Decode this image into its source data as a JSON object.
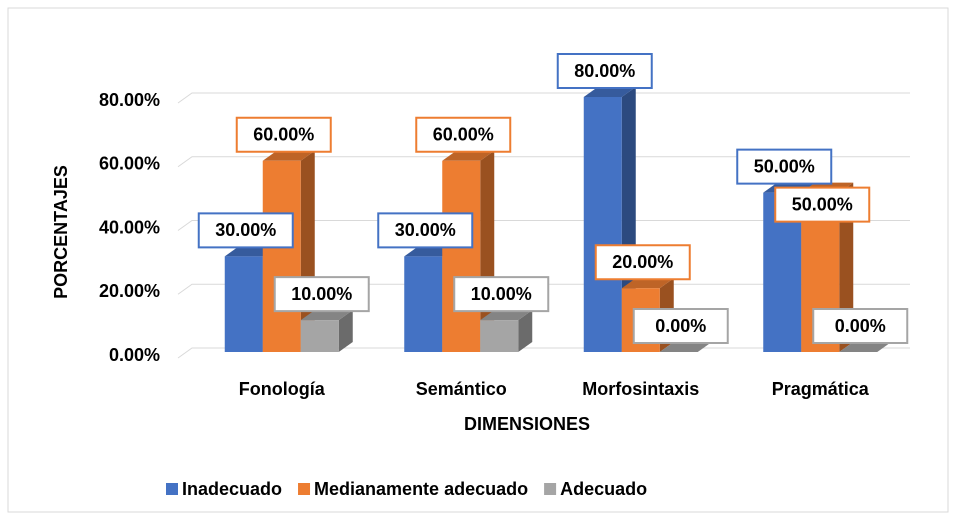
{
  "chart_data": {
    "type": "bar3d",
    "categories": [
      "Fonología",
      "Semántico",
      "Morfosintaxis",
      "Pragmática"
    ],
    "series": [
      {
        "name": "Inadecuado",
        "color": "#4472c4",
        "values": [
          30,
          30,
          80,
          50
        ],
        "value_labels": [
          "30.00%",
          "30.00%",
          "80.00%",
          "50.00%"
        ]
      },
      {
        "name": "Medianamente adecuado",
        "color": "#ed7d31",
        "values": [
          60,
          60,
          20,
          50
        ],
        "value_labels": [
          "60.00%",
          "60.00%",
          "20.00%",
          "50.00%"
        ]
      },
      {
        "name": "Adecuado",
        "color": "#a5a5a5",
        "values": [
          10,
          10,
          0,
          0
        ],
        "value_labels": [
          "10.00%",
          "10.00%",
          "0.00%",
          "0.00%"
        ]
      }
    ],
    "ylim": [
      0,
      80
    ],
    "yticks": [
      {
        "value": 0,
        "label": "0.00%"
      },
      {
        "value": 20,
        "label": "20.00%"
      },
      {
        "value": 40,
        "label": "40.00%"
      },
      {
        "value": 60,
        "label": "60.00%"
      },
      {
        "value": 80,
        "label": "80.00%"
      }
    ],
    "xlabel": "DIMENSIONES",
    "ylabel": "PORCENTAJES",
    "grid": true,
    "legend": "bottom"
  }
}
